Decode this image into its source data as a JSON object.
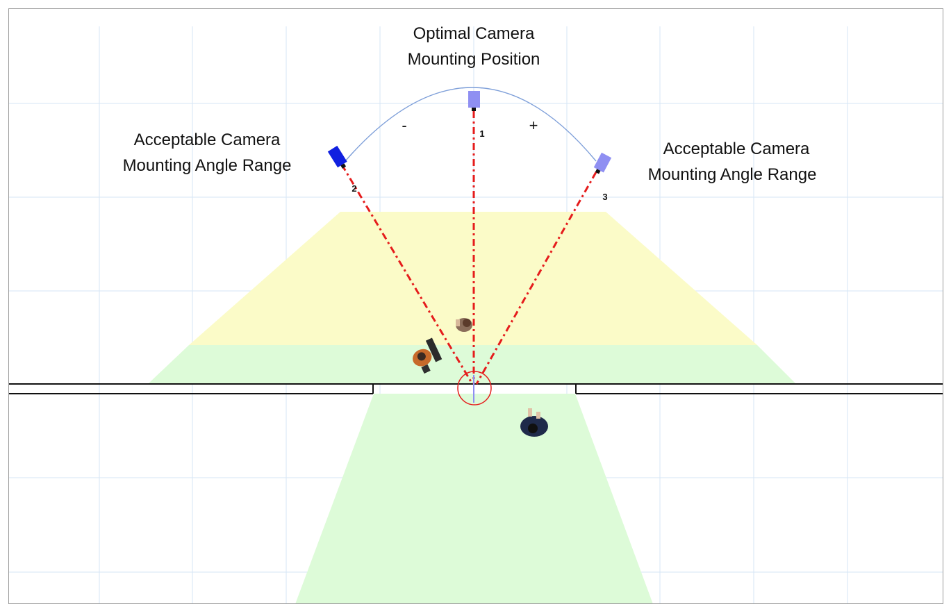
{
  "labels": {
    "optimal_line1": "Optimal Camera",
    "optimal_line2": "Mounting Position",
    "left_line1": "Acceptable Camera",
    "left_line2": "Mounting Angle Range",
    "right_line1": "Acceptable Camera",
    "right_line2": "Mounting Angle Range",
    "minus_sign": "-",
    "plus_sign": "+"
  },
  "cameras": [
    {
      "id": "1",
      "position": "optimal",
      "color": "#8f8ff2"
    },
    {
      "id": "2",
      "position": "left",
      "color": "#1020e0"
    },
    {
      "id": "3",
      "position": "right",
      "color": "#8f8ff2"
    }
  ],
  "colors": {
    "grid": "#d6e6f5",
    "yellow_zone": "#fbfbc8",
    "green_zone": "#ddfbd8",
    "sight_line": "#e51c1c",
    "arc": "#7e9fd9",
    "target_circle": "#e51c1c",
    "walls": "#111111"
  },
  "people": [
    {
      "name": "person-top",
      "clothing": "#8a6d5a"
    },
    {
      "name": "person-left",
      "clothing": "#c76a2a"
    },
    {
      "name": "person-right",
      "clothing": "#1f2a4a"
    }
  ]
}
